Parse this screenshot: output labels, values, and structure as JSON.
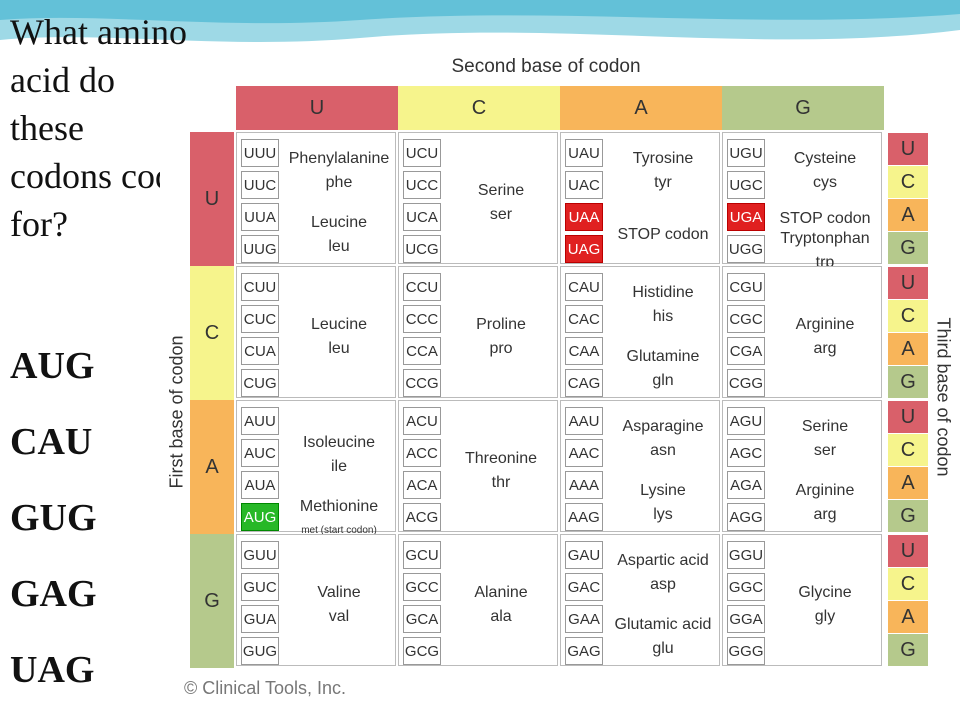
{
  "question": "What amino acid do these codons code for?",
  "codons": [
    "AUG",
    "CAU",
    "GUG",
    "GAG",
    "UAG"
  ],
  "table": {
    "top_title": "Second base of codon",
    "left_title": "First base of codon",
    "right_title": "Third base of codon",
    "bases": [
      "U",
      "C",
      "A",
      "G"
    ],
    "colors": {
      "U": "#d9606a",
      "C": "#f6f48c",
      "A": "#f8b55a",
      "G": "#b5c98c"
    },
    "credit": "© Clinical Tools, Inc.",
    "rows": [
      [
        {
          "codons": [
            "UUU",
            "UUC",
            "UUA",
            "UUG"
          ],
          "aa": [
            {
              "name": "Phenylalanine",
              "abbr": "phe",
              "span": [
                0,
                1
              ]
            },
            {
              "name": "Leucine",
              "abbr": "leu",
              "span": [
                2,
                3
              ]
            }
          ]
        },
        {
          "codons": [
            "UCU",
            "UCC",
            "UCA",
            "UCG"
          ],
          "aa": [
            {
              "name": "Serine",
              "abbr": "ser",
              "span": [
                0,
                3
              ]
            }
          ]
        },
        {
          "codons": [
            "UAU",
            "UAC",
            "UAA",
            "UAG"
          ],
          "stop": [
            2,
            3
          ],
          "aa": [
            {
              "name": "Tyrosine",
              "abbr": "tyr",
              "span": [
                0,
                1
              ]
            },
            {
              "name": "STOP codon",
              "abbr": "",
              "span": [
                2,
                3
              ]
            }
          ]
        },
        {
          "codons": [
            "UGU",
            "UGC",
            "UGA",
            "UGG"
          ],
          "stop": [
            2
          ],
          "aa": [
            {
              "name": "Cysteine",
              "abbr": "cys",
              "span": [
                0,
                1
              ]
            },
            {
              "name": "STOP codon",
              "abbr": "",
              "span": [
                2,
                2
              ]
            },
            {
              "name": "Tryptonphan",
              "abbr": "trp",
              "span": [
                3,
                3
              ]
            }
          ]
        }
      ],
      [
        {
          "codons": [
            "CUU",
            "CUC",
            "CUA",
            "CUG"
          ],
          "aa": [
            {
              "name": "Leucine",
              "abbr": "leu",
              "span": [
                0,
                3
              ]
            }
          ]
        },
        {
          "codons": [
            "CCU",
            "CCC",
            "CCA",
            "CCG"
          ],
          "aa": [
            {
              "name": "Proline",
              "abbr": "pro",
              "span": [
                0,
                3
              ]
            }
          ]
        },
        {
          "codons": [
            "CAU",
            "CAC",
            "CAA",
            "CAG"
          ],
          "aa": [
            {
              "name": "Histidine",
              "abbr": "his",
              "span": [
                0,
                1
              ]
            },
            {
              "name": "Glutamine",
              "abbr": "gln",
              "span": [
                2,
                3
              ]
            }
          ]
        },
        {
          "codons": [
            "CGU",
            "CGC",
            "CGA",
            "CGG"
          ],
          "aa": [
            {
              "name": "Arginine",
              "abbr": "arg",
              "span": [
                0,
                3
              ]
            }
          ]
        }
      ],
      [
        {
          "codons": [
            "AUU",
            "AUC",
            "AUA",
            "AUG"
          ],
          "start": [
            3
          ],
          "aa": [
            {
              "name": "Isoleucine",
              "abbr": "ile",
              "span": [
                0,
                2
              ]
            },
            {
              "name": "Methionine",
              "abbr": "met (start codon)",
              "span": [
                3,
                3
              ]
            }
          ]
        },
        {
          "codons": [
            "ACU",
            "ACC",
            "ACA",
            "ACG"
          ],
          "aa": [
            {
              "name": "Threonine",
              "abbr": "thr",
              "span": [
                0,
                3
              ]
            }
          ]
        },
        {
          "codons": [
            "AAU",
            "AAC",
            "AAA",
            "AAG"
          ],
          "aa": [
            {
              "name": "Asparagine",
              "abbr": "asn",
              "span": [
                0,
                1
              ]
            },
            {
              "name": "Lysine",
              "abbr": "lys",
              "span": [
                2,
                3
              ]
            }
          ]
        },
        {
          "codons": [
            "AGU",
            "AGC",
            "AGA",
            "AGG"
          ],
          "aa": [
            {
              "name": "Serine",
              "abbr": "ser",
              "span": [
                0,
                1
              ]
            },
            {
              "name": "Arginine",
              "abbr": "arg",
              "span": [
                2,
                3
              ]
            }
          ]
        }
      ],
      [
        {
          "codons": [
            "GUU",
            "GUC",
            "GUA",
            "GUG"
          ],
          "aa": [
            {
              "name": "Valine",
              "abbr": "val",
              "span": [
                0,
                3
              ]
            }
          ]
        },
        {
          "codons": [
            "GCU",
            "GCC",
            "GCA",
            "GCG"
          ],
          "aa": [
            {
              "name": "Alanine",
              "abbr": "ala",
              "span": [
                0,
                3
              ]
            }
          ]
        },
        {
          "codons": [
            "GAU",
            "GAC",
            "GAA",
            "GAG"
          ],
          "aa": [
            {
              "name": "Aspartic acid",
              "abbr": "asp",
              "span": [
                0,
                1
              ]
            },
            {
              "name": "Glutamic acid",
              "abbr": "glu",
              "span": [
                2,
                3
              ]
            }
          ]
        },
        {
          "codons": [
            "GGU",
            "GGC",
            "GGA",
            "GGG"
          ],
          "aa": [
            {
              "name": "Glycine",
              "abbr": "gly",
              "span": [
                0,
                3
              ]
            }
          ]
        }
      ]
    ]
  }
}
